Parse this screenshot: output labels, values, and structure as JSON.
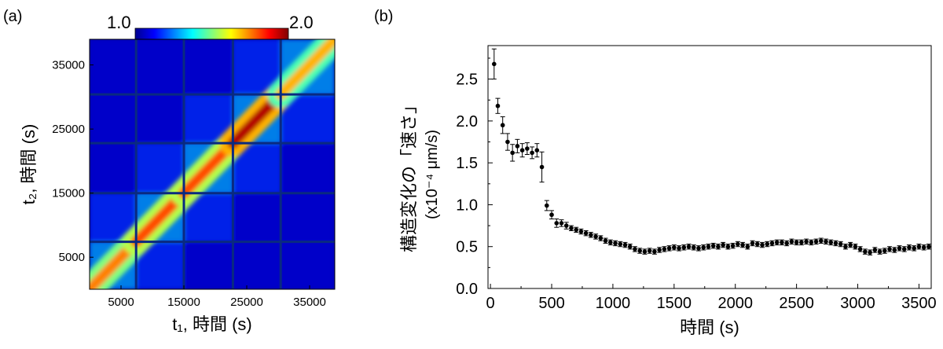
{
  "chart_data": [
    {
      "type": "heatmap",
      "panel_label": "(a)",
      "xlabel": "t₁, 時間 (s)",
      "ylabel": "t₂, 時間 (s)",
      "xlim": [
        0,
        39000
      ],
      "ylim": [
        0,
        39000
      ],
      "xticks": [
        "5000",
        "15000",
        "25000",
        "35000"
      ],
      "xtick_values": [
        5000,
        15000,
        25000,
        35000
      ],
      "yticks": [
        "5000",
        "15000",
        "25000",
        "35000"
      ],
      "ytick_values": [
        5000,
        15000,
        25000,
        35000
      ],
      "colorbar": {
        "min_label": "1.0",
        "max_label": "2.0",
        "min": 1.0,
        "max": 2.0,
        "colormap": "jet"
      },
      "block_boundaries_s": [
        7400,
        15000,
        22800,
        30400
      ],
      "diagonal_segments": [
        {
          "t_start": 0,
          "t_end": 7400,
          "value": 1.75
        },
        {
          "t_start": 7400,
          "t_end": 15000,
          "value": 1.8
        },
        {
          "t_start": 15000,
          "t_end": 22800,
          "value": 1.8
        },
        {
          "t_start": 22800,
          "t_end": 30400,
          "value": 1.95
        },
        {
          "t_start": 30400,
          "t_end": 39000,
          "value": 1.7
        }
      ],
      "background_value": 1.05
    },
    {
      "type": "scatter",
      "panel_label": "(b)",
      "title": "",
      "xlabel": "時間 (s)",
      "ylabel_line1": "構造変化の「速さ」",
      "ylabel_line2": "(x10⁻⁴ μm/s)",
      "xlim": [
        -20,
        3600
      ],
      "ylim": [
        0,
        2.9
      ],
      "xticks": [
        "0",
        "500",
        "1000",
        "1500",
        "2000",
        "2500",
        "3000",
        "3500"
      ],
      "xtick_values": [
        0,
        500,
        1000,
        1500,
        2000,
        2500,
        3000,
        3500
      ],
      "yticks": [
        "0.0",
        "0.5",
        "1.0",
        "1.5",
        "2.0",
        "2.5"
      ],
      "ytick_values": [
        0,
        0.5,
        1.0,
        1.5,
        2.0,
        2.5
      ],
      "x": [
        30,
        60,
        100,
        140,
        180,
        220,
        260,
        300,
        340,
        380,
        420,
        460,
        500,
        540,
        580,
        620,
        660,
        700,
        740,
        780,
        820,
        860,
        900,
        940,
        980,
        1020,
        1060,
        1100,
        1140,
        1180,
        1220,
        1260,
        1300,
        1340,
        1380,
        1420,
        1460,
        1500,
        1540,
        1580,
        1620,
        1660,
        1700,
        1740,
        1780,
        1820,
        1860,
        1900,
        1940,
        1980,
        2020,
        2060,
        2100,
        2140,
        2180,
        2220,
        2260,
        2300,
        2340,
        2380,
        2420,
        2460,
        2500,
        2540,
        2580,
        2620,
        2660,
        2700,
        2740,
        2780,
        2820,
        2860,
        2900,
        2940,
        2980,
        3020,
        3060,
        3100,
        3140,
        3180,
        3220,
        3260,
        3300,
        3340,
        3380,
        3420,
        3460,
        3500,
        3540,
        3580
      ],
      "y": [
        2.68,
        2.18,
        1.95,
        1.75,
        1.62,
        1.7,
        1.65,
        1.67,
        1.62,
        1.65,
        1.45,
        0.99,
        0.88,
        0.78,
        0.78,
        0.75,
        0.72,
        0.7,
        0.68,
        0.66,
        0.64,
        0.62,
        0.6,
        0.57,
        0.55,
        0.54,
        0.53,
        0.52,
        0.5,
        0.47,
        0.45,
        0.44,
        0.45,
        0.44,
        0.46,
        0.47,
        0.48,
        0.49,
        0.48,
        0.49,
        0.5,
        0.49,
        0.48,
        0.49,
        0.5,
        0.51,
        0.5,
        0.52,
        0.5,
        0.51,
        0.53,
        0.52,
        0.5,
        0.54,
        0.53,
        0.52,
        0.53,
        0.54,
        0.55,
        0.55,
        0.54,
        0.56,
        0.55,
        0.55,
        0.56,
        0.55,
        0.56,
        0.57,
        0.56,
        0.55,
        0.54,
        0.53,
        0.5,
        0.52,
        0.5,
        0.47,
        0.44,
        0.43,
        0.46,
        0.44,
        0.45,
        0.47,
        0.46,
        0.48,
        0.47,
        0.49,
        0.48,
        0.5,
        0.49,
        0.5
      ],
      "yerr": [
        0.18,
        0.09,
        0.1,
        0.1,
        0.1,
        0.08,
        0.08,
        0.07,
        0.07,
        0.08,
        0.18,
        0.06,
        0.05,
        0.05,
        0.04,
        0.04,
        0.03,
        0.03,
        0.03,
        0.03,
        0.03,
        0.03,
        0.03,
        0.03,
        0.03,
        0.03,
        0.03,
        0.03,
        0.03,
        0.03,
        0.03,
        0.03,
        0.03,
        0.03,
        0.03,
        0.03,
        0.03,
        0.03,
        0.03,
        0.03,
        0.03,
        0.03,
        0.03,
        0.03,
        0.03,
        0.03,
        0.03,
        0.03,
        0.03,
        0.03,
        0.03,
        0.03,
        0.03,
        0.03,
        0.03,
        0.03,
        0.03,
        0.03,
        0.03,
        0.03,
        0.03,
        0.03,
        0.03,
        0.03,
        0.03,
        0.03,
        0.03,
        0.03,
        0.03,
        0.03,
        0.03,
        0.03,
        0.03,
        0.03,
        0.03,
        0.03,
        0.03,
        0.03,
        0.03,
        0.03,
        0.03,
        0.03,
        0.03,
        0.03,
        0.03,
        0.03,
        0.03,
        0.03,
        0.03,
        0.03
      ]
    }
  ]
}
